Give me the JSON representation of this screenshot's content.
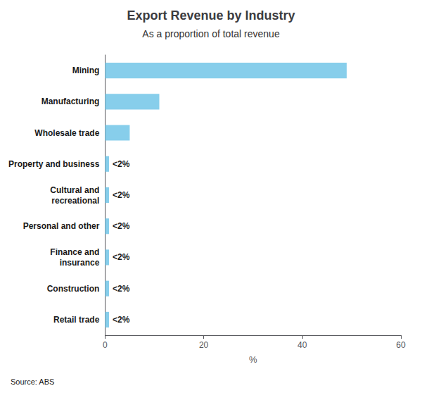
{
  "chart_data": {
    "type": "bar",
    "orientation": "horizontal",
    "title": "Export Revenue by Industry",
    "subtitle": "As a proportion of total revenue",
    "source": "Source: ABS",
    "xlabel": "%",
    "categories": [
      "Retail trade",
      "Construction",
      "Finance and\ninsurance",
      "Personal and other",
      "Cultural and\nrecreational",
      "Property and business",
      "Wholesale trade",
      "Manufacturing",
      "Mining"
    ],
    "values": [
      0.8,
      0.8,
      0.8,
      0.8,
      0.8,
      0.8,
      5.0,
      11.0,
      49.0
    ],
    "value_labels": [
      "<2%",
      "<2%",
      "<2%",
      "<2%",
      "<2%",
      "<2%",
      null,
      null,
      null
    ],
    "color": "#87CEEB",
    "xlim": [
      0,
      60
    ],
    "xticks": [
      0,
      20,
      40,
      60
    ],
    "grid": false
  }
}
